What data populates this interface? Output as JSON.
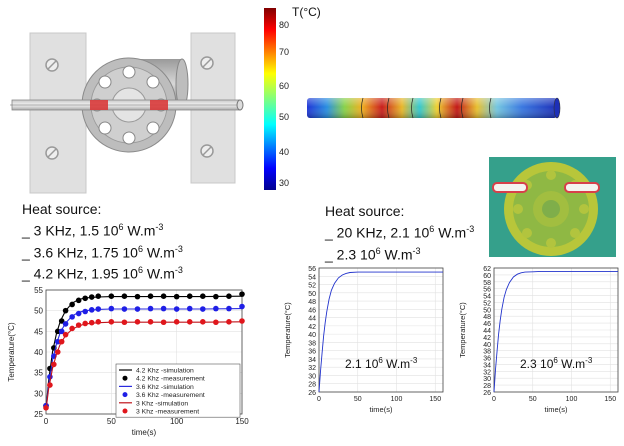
{
  "colorbar": {
    "title": "T(°C)",
    "ticks": [
      "80",
      "70",
      "60",
      "50",
      "40",
      "30"
    ]
  },
  "heat_left": {
    "title": "Heat source:",
    "lines": [
      {
        "prefix": "_ 3 KHz, 1.5 10",
        "exp": "6",
        "unit": " W.m",
        "unit_exp": "-3"
      },
      {
        "prefix": "_ 3.6 KHz, 1.75 10",
        "exp": "6",
        "unit": " W.m",
        "unit_exp": "-3"
      },
      {
        "prefix": "_ 4.2 KHz, 1.95 10",
        "exp": "6",
        "unit": " W.m",
        "unit_exp": "-3"
      }
    ]
  },
  "heat_right": {
    "title": "Heat source:",
    "lines": [
      {
        "prefix": "_ 20 KHz, 2.1 10",
        "exp": "6",
        "unit": " W.m",
        "unit_exp": "-3"
      },
      {
        "prefix": "_ 2.3 10",
        "exp": "6",
        "unit": " W.m",
        "unit_exp": "-3"
      }
    ]
  },
  "chart_data": [
    {
      "type": "line",
      "xlabel": "time(s)",
      "ylabel": "Temperature(°C)",
      "xlim": [
        0,
        150
      ],
      "ylim": [
        25,
        55
      ],
      "xticks": [
        "0",
        "50",
        "100",
        "150"
      ],
      "yticks": [
        "25",
        "30",
        "35",
        "40",
        "45",
        "50",
        "55"
      ],
      "legend_position": "bottom-right",
      "series": [
        {
          "name": "4.2 Khz -simulation",
          "color": "#000000",
          "style": "line",
          "x": [
            0,
            2,
            5,
            8,
            11,
            15,
            20,
            25,
            30,
            40,
            50,
            60,
            80,
            100,
            120,
            150
          ],
          "values": [
            26,
            33,
            40,
            44.5,
            47.5,
            50,
            51.8,
            52.7,
            53.1,
            53.3,
            53.4,
            53.4,
            53.4,
            53.4,
            53.4,
            53.5
          ]
        },
        {
          "name": "4.2 Khz -measurement",
          "color": "#000000",
          "style": "dots",
          "x": [
            0,
            3,
            6,
            9,
            12,
            15,
            20,
            25,
            30,
            35,
            40,
            50,
            60,
            70,
            80,
            90,
            100,
            110,
            120,
            130,
            140,
            150
          ],
          "values": [
            27,
            36,
            41,
            45,
            47.5,
            50,
            51.5,
            52.5,
            53,
            53.3,
            53.5,
            53.5,
            53.5,
            53.4,
            53.5,
            53.5,
            53.4,
            53.5,
            53.5,
            53.4,
            53.5,
            54
          ]
        },
        {
          "name": "3.6 Khz -simulation",
          "color": "#2a2adf",
          "style": "line",
          "x": [
            0,
            2,
            5,
            8,
            11,
            15,
            20,
            25,
            30,
            40,
            50,
            60,
            80,
            100,
            120,
            150
          ],
          "values": [
            26,
            32,
            38,
            42,
            44.8,
            47,
            48.7,
            49.6,
            50,
            50.3,
            50.4,
            50.4,
            50.4,
            50.4,
            50.4,
            50.5
          ]
        },
        {
          "name": "3.6 Khz -measurement",
          "color": "#1f1fe6",
          "style": "dots",
          "x": [
            0,
            3,
            6,
            9,
            12,
            15,
            20,
            25,
            30,
            35,
            40,
            50,
            60,
            70,
            80,
            90,
            100,
            110,
            120,
            130,
            140,
            150
          ],
          "values": [
            27,
            34,
            39,
            42.5,
            45,
            46.8,
            48.5,
            49.3,
            49.8,
            50.2,
            50.4,
            50.5,
            50.4,
            50.4,
            50.5,
            50.5,
            50.4,
            50.5,
            50.4,
            50.5,
            50.5,
            51
          ]
        },
        {
          "name": "3 Khz -simulation",
          "color": "#c0141b",
          "style": "line",
          "x": [
            0,
            2,
            5,
            8,
            11,
            15,
            20,
            25,
            30,
            40,
            50,
            60,
            80,
            100,
            120,
            150
          ],
          "values": [
            26,
            31,
            36,
            39.5,
            42,
            44,
            45.5,
            46.3,
            46.8,
            47.1,
            47.2,
            47.2,
            47.2,
            47.2,
            47.2,
            47.3
          ]
        },
        {
          "name": "3 Khz -measurement",
          "color": "#e0161c",
          "style": "dots",
          "x": [
            0,
            3,
            6,
            9,
            12,
            15,
            20,
            25,
            30,
            35,
            40,
            50,
            60,
            70,
            80,
            90,
            100,
            110,
            120,
            130,
            140,
            150
          ],
          "values": [
            26.5,
            32,
            37,
            40,
            42.5,
            44.2,
            45.7,
            46.5,
            46.9,
            47.1,
            47.3,
            47.3,
            47.2,
            47.3,
            47.3,
            47.2,
            47.3,
            47.3,
            47.3,
            47.2,
            47.3,
            47.5
          ]
        }
      ]
    },
    {
      "type": "line",
      "xlabel": "time(s)",
      "ylabel": "Temperature(°C)",
      "xlim": [
        0,
        160
      ],
      "ylim": [
        26,
        56
      ],
      "xticks": [
        "0",
        "50",
        "100",
        "150"
      ],
      "yticks": [
        "26",
        "28",
        "30",
        "32",
        "34",
        "36",
        "38",
        "40",
        "42",
        "44",
        "46",
        "48",
        "50",
        "52",
        "54",
        "56"
      ],
      "annotation": {
        "prefix": "2.1 10",
        "exp": "6",
        "unit": " W.m",
        "unit_exp": "-3"
      },
      "series": [
        {
          "color": "#2233cc",
          "x": [
            0,
            2,
            4,
            6,
            8,
            10,
            13,
            16,
            20,
            25,
            30,
            35,
            40,
            50,
            60,
            80,
            100,
            130,
            160
          ],
          "values": [
            26,
            31,
            35.5,
            39.5,
            42.8,
            45.5,
            48.5,
            50.6,
            52.3,
            53.6,
            54.3,
            54.7,
            54.9,
            55,
            55,
            55,
            55,
            55,
            55
          ]
        }
      ]
    },
    {
      "type": "line",
      "xlabel": "time(s)",
      "ylabel": "Temperature(°C)",
      "xlim": [
        0,
        160
      ],
      "ylim": [
        26,
        62
      ],
      "xticks": [
        "0",
        "50",
        "100",
        "150"
      ],
      "yticks": [
        "26",
        "28",
        "30",
        "32",
        "34",
        "36",
        "38",
        "40",
        "42",
        "44",
        "46",
        "48",
        "50",
        "52",
        "54",
        "56",
        "58",
        "60",
        "62"
      ],
      "annotation": {
        "prefix": "2.3 10",
        "exp": "6",
        "unit": " W.m",
        "unit_exp": "-3"
      },
      "series": [
        {
          "color": "#2233cc",
          "x": [
            0,
            2,
            4,
            6,
            8,
            10,
            13,
            16,
            20,
            25,
            30,
            35,
            40,
            50,
            60,
            80,
            100,
            130,
            160
          ],
          "values": [
            26,
            32.5,
            38,
            42.8,
            46.8,
            50,
            53.5,
            55.8,
            57.8,
            59.4,
            60.2,
            60.6,
            60.8,
            60.9,
            61,
            61,
            61,
            61,
            61
          ]
        }
      ]
    }
  ]
}
